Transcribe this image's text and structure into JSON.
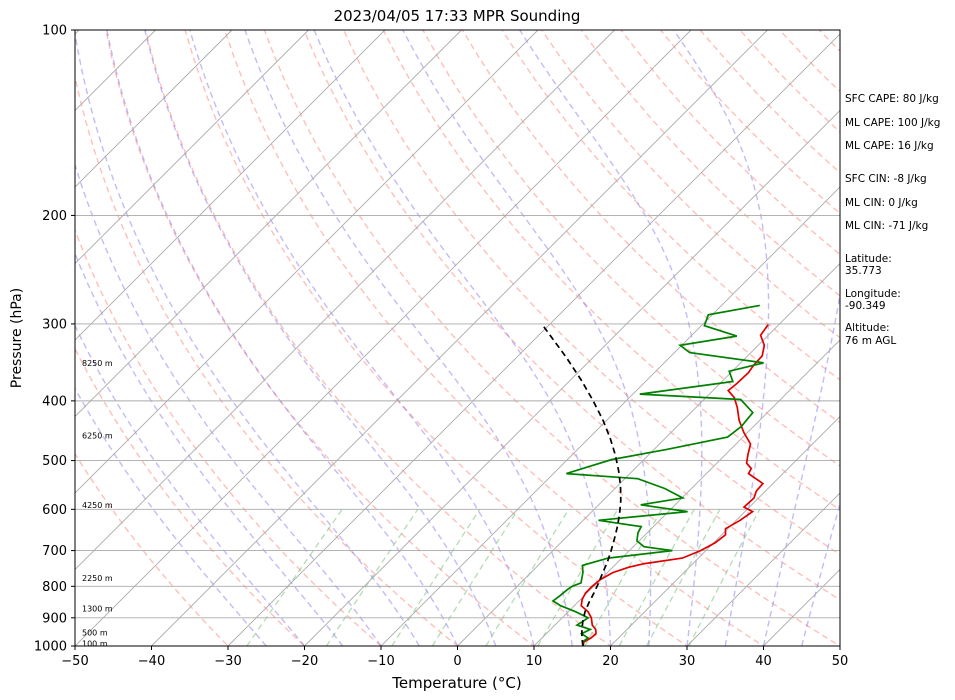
{
  "chart_data": {
    "type": "line",
    "title": "2023/04/05 17:33 MPR Sounding",
    "xlabel": "Temperature (°C)",
    "ylabel": "Pressure (hPa)",
    "xlim": [
      -50,
      50
    ],
    "ylim": [
      1000,
      100
    ],
    "yscale": "log",
    "skew": true,
    "grid": true,
    "x_ticks": [
      "−50",
      "−40",
      "−30",
      "−20",
      "−10",
      "0",
      "10",
      "20",
      "30",
      "40",
      "50"
    ],
    "y_ticks": [
      "1000",
      "900",
      "800",
      "700",
      "600",
      "500",
      "400",
      "300",
      "200",
      "100"
    ],
    "series": [
      {
        "color": "#e00000",
        "points": [
          [
            1000,
            16.4
          ],
          [
            985,
            16.0
          ],
          [
            970,
            16.4
          ],
          [
            955,
            16.5
          ],
          [
            940,
            15.9
          ],
          [
            925,
            14.9
          ],
          [
            900,
            13.8
          ],
          [
            880,
            12.6
          ],
          [
            860,
            10.9
          ],
          [
            840,
            10.2
          ],
          [
            820,
            9.8
          ],
          [
            800,
            9.8
          ],
          [
            780,
            10.0
          ],
          [
            760,
            10.7
          ],
          [
            745,
            12.1
          ],
          [
            735,
            13.7
          ],
          [
            720,
            17.9
          ],
          [
            700,
            19.3
          ],
          [
            680,
            20.2
          ],
          [
            660,
            20.5
          ],
          [
            645,
            19.7
          ],
          [
            625,
            20.5
          ],
          [
            605,
            21.0
          ],
          [
            595,
            19.3
          ],
          [
            575,
            19.4
          ],
          [
            560,
            18.8
          ],
          [
            545,
            18.7
          ],
          [
            525,
            15.5
          ],
          [
            515,
            15.2
          ],
          [
            505,
            13.9
          ],
          [
            490,
            13.0
          ],
          [
            470,
            11.9
          ],
          [
            450,
            9.5
          ],
          [
            430,
            7.3
          ],
          [
            410,
            5.4
          ],
          [
            395,
            3.7
          ],
          [
            385,
            2.0
          ],
          [
            375,
            2.2
          ],
          [
            360,
            2.3
          ],
          [
            350,
            2.0
          ],
          [
            338,
            1.9
          ],
          [
            325,
            0.8
          ],
          [
            313,
            -1.0
          ],
          [
            301,
            -1.4
          ]
        ]
      },
      {
        "color": "#008000",
        "points": [
          [
            1000,
            16.4
          ],
          [
            985,
            15.8
          ],
          [
            970,
            16.0
          ],
          [
            955,
            14.6
          ],
          [
            940,
            15.2
          ],
          [
            925,
            12.9
          ],
          [
            900,
            13.4
          ],
          [
            880,
            11.0
          ],
          [
            860,
            8.2
          ],
          [
            845,
            6.6
          ],
          [
            830,
            6.8
          ],
          [
            810,
            7.0
          ],
          [
            800,
            7.2
          ],
          [
            790,
            7.9
          ],
          [
            760,
            6.8
          ],
          [
            740,
            5.8
          ],
          [
            720,
            8.2
          ],
          [
            700,
            15.6
          ],
          [
            690,
            11.4
          ],
          [
            675,
            9.7
          ],
          [
            655,
            8.8
          ],
          [
            640,
            8.4
          ],
          [
            625,
            2.0
          ],
          [
            605,
            12.5
          ],
          [
            590,
            5.5
          ],
          [
            575,
            10.1
          ],
          [
            555,
            6.5
          ],
          [
            535,
            1.7
          ],
          [
            525,
            -8.3
          ],
          [
            510,
            -6.1
          ],
          [
            498,
            -4.2
          ],
          [
            480,
            1.6
          ],
          [
            458,
            8.0
          ],
          [
            440,
            8.4
          ],
          [
            418,
            8.1
          ],
          [
            398,
            4.8
          ],
          [
            390,
            -9.1
          ],
          [
            372,
            1.4
          ],
          [
            358,
            -0.4
          ],
          [
            347,
            3.0
          ],
          [
            334,
            -8.0
          ],
          [
            325,
            -10.2
          ],
          [
            314,
            -4.0
          ],
          [
            302,
            -9.6
          ],
          [
            290,
            -10.5
          ],
          [
            280,
            -5.0
          ]
        ]
      },
      {
        "color": "#000000",
        "dashed": true,
        "points": [
          [
            1000,
            16.4
          ],
          [
            970,
            15.2
          ],
          [
            940,
            14.1
          ],
          [
            910,
            13.1
          ],
          [
            880,
            12.2
          ],
          [
            850,
            11.5
          ],
          [
            820,
            10.9
          ],
          [
            790,
            10.2
          ],
          [
            760,
            9.4
          ],
          [
            730,
            8.6
          ],
          [
            700,
            7.6
          ],
          [
            670,
            6.5
          ],
          [
            640,
            5.3
          ],
          [
            610,
            3.9
          ],
          [
            580,
            2.3
          ],
          [
            550,
            0.4
          ],
          [
            520,
            -1.8
          ],
          [
            490,
            -4.3
          ],
          [
            460,
            -7.2
          ],
          [
            430,
            -10.5
          ],
          [
            400,
            -14.3
          ],
          [
            370,
            -18.6
          ],
          [
            340,
            -23.5
          ],
          [
            310,
            -29.1
          ],
          [
            300,
            -31.1
          ]
        ]
      }
    ],
    "height_labels": [
      {
        "text": "100 m",
        "p": 990
      },
      {
        "text": "500 m",
        "p": 950
      },
      {
        "text": "1300 m",
        "p": 870
      },
      {
        "text": "2250 m",
        "p": 775
      },
      {
        "text": "4250 m",
        "p": 590
      },
      {
        "text": "6250 m",
        "p": 455
      },
      {
        "text": "8250 m",
        "p": 347
      }
    ]
  },
  "side_info": [
    "SFC CAPE: 80 J/kg",
    "ML CAPE: 100 J/kg",
    "ML CAPE: 16 J/kg",
    "SFC CIN: -8 J/kg",
    "ML CIN: 0 J/kg",
    "ML CIN: -71 J/kg",
    "Latitude:",
    "35.773",
    "Longitude:",
    "-90.349",
    "Altitude:",
    "76 m AGL"
  ]
}
